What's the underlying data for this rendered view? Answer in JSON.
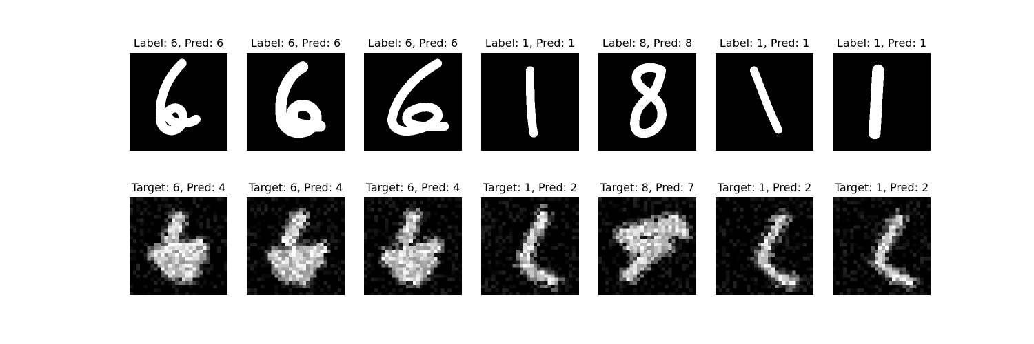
{
  "figure": {
    "panels_top": [
      {
        "title": "Label: 6, Pred: 6",
        "image": "handwritten-digit-6",
        "style": "clean"
      },
      {
        "title": "Label: 6, Pred: 6",
        "image": "handwritten-digit-6",
        "style": "clean"
      },
      {
        "title": "Label: 6, Pred: 6",
        "image": "handwritten-digit-6",
        "style": "clean"
      },
      {
        "title": "Label: 1, Pred: 1",
        "image": "handwritten-digit-1",
        "style": "clean"
      },
      {
        "title": "Label: 8, Pred: 8",
        "image": "handwritten-digit-8",
        "style": "clean"
      },
      {
        "title": "Label: 1, Pred: 1",
        "image": "handwritten-digit-1",
        "style": "clean"
      },
      {
        "title": "Label: 1, Pred: 1",
        "image": "handwritten-digit-1",
        "style": "clean"
      }
    ],
    "panels_bottom": [
      {
        "title": "Target: 6, Pred: 4",
        "image": "adversarial-noisy-digit",
        "style": "noisy"
      },
      {
        "title": "Target: 6, Pred: 4",
        "image": "adversarial-noisy-digit",
        "style": "noisy"
      },
      {
        "title": "Target: 6, Pred: 4",
        "image": "adversarial-noisy-digit",
        "style": "noisy"
      },
      {
        "title": "Target: 1, Pred: 2",
        "image": "adversarial-noisy-digit",
        "style": "noisy"
      },
      {
        "title": "Target: 8, Pred: 7",
        "image": "adversarial-noisy-digit",
        "style": "noisy"
      },
      {
        "title": "Target: 1, Pred: 2",
        "image": "adversarial-noisy-digit",
        "style": "noisy"
      },
      {
        "title": "Target: 1, Pred: 2",
        "image": "adversarial-noisy-digit",
        "style": "noisy"
      }
    ]
  }
}
